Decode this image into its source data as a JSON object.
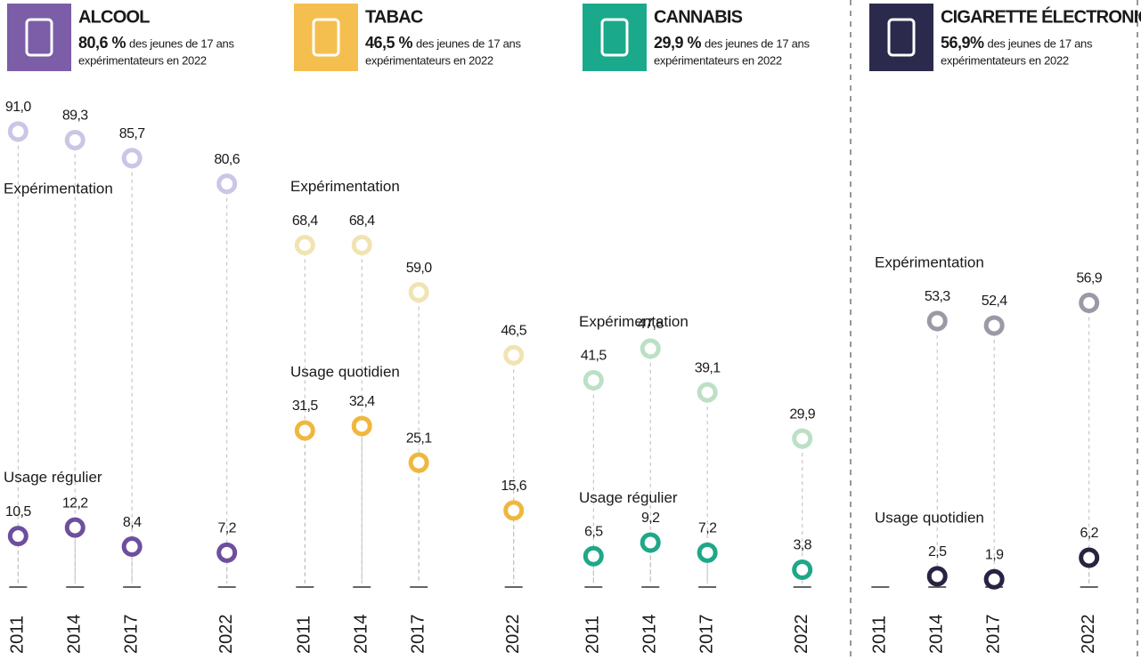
{
  "chart_data": [
    {
      "type": "line",
      "title": "ALCOOL",
      "headline": "80,6 %",
      "subtitle": [
        "des jeunes de 17 ans",
        "expérimentateurs en 2022"
      ],
      "icon_color": "#7b5ea7",
      "x": [
        2011,
        2014,
        2017,
        2022
      ],
      "xlim": [
        2010,
        2023
      ],
      "ylim": [
        0,
        100
      ],
      "series": [
        {
          "name": "Expérimentation",
          "color": "#cbc5e6",
          "values": [
            91.0,
            89.3,
            85.7,
            80.6
          ],
          "value_labels": [
            "91,0",
            "89,3",
            "85,7",
            "80,6"
          ]
        },
        {
          "name": "Usage régulier",
          "color": "#6e4f9e",
          "values": [
            10.5,
            12.2,
            8.4,
            7.2
          ],
          "value_labels": [
            "10,5",
            "12,2",
            "8,4",
            "7,2"
          ]
        }
      ]
    },
    {
      "type": "line",
      "title": "TABAC",
      "headline": "46,5 %",
      "subtitle": [
        "des jeunes de 17 ans",
        "expérimentateurs en 2022"
      ],
      "icon_color": "#f5bf4f",
      "x": [
        2011,
        2014,
        2017,
        2022
      ],
      "xlim": [
        2010,
        2023
      ],
      "ylim": [
        0,
        100
      ],
      "series": [
        {
          "name": "Expérimentation",
          "color": "#f1e3b2",
          "values": [
            68.4,
            68.4,
            59.0,
            46.5
          ],
          "value_labels": [
            "68,4",
            "68,4",
            "59,0",
            "46,5"
          ]
        },
        {
          "name": "Usage quotidien",
          "color": "#f0b73e",
          "values": [
            31.5,
            32.4,
            25.1,
            15.6
          ],
          "value_labels": [
            "31,5",
            "32,4",
            "25,1",
            "15,6"
          ]
        }
      ]
    },
    {
      "type": "line",
      "title": "CANNABIS",
      "headline": "29,9 %",
      "subtitle": [
        "des jeunes de 17 ans",
        "expérimentateurs en 2022"
      ],
      "icon_color": "#1aa98a",
      "x": [
        2011,
        2014,
        2017,
        2022
      ],
      "xlim": [
        2010,
        2023
      ],
      "ylim": [
        0,
        100
      ],
      "series": [
        {
          "name": "Expérimentation",
          "color": "#bce0c5",
          "values": [
            41.5,
            47.8,
            39.1,
            29.9
          ],
          "value_labels": [
            "41,5",
            "47,8",
            "39,1",
            "29,9"
          ]
        },
        {
          "name": "Usage régulier",
          "color": "#1ea888",
          "values": [
            6.5,
            9.2,
            7.2,
            3.8
          ],
          "value_labels": [
            "6,5",
            "9,2",
            "7,2",
            "3,8"
          ]
        }
      ]
    },
    {
      "type": "line",
      "title": "CIGARETTE ÉLECTRONIQUE",
      "headline": "56,9%",
      "subtitle": [
        "des jeunes de 17 ans",
        "expérimentateurs en 2022"
      ],
      "icon_color": "#2b2a4c",
      "x": [
        2011,
        2014,
        2017,
        2022
      ],
      "xlim": [
        2010,
        2023
      ],
      "ylim": [
        0,
        100
      ],
      "series": [
        {
          "name": "Expérimentation",
          "color": "#9a99a6",
          "values": [
            null,
            53.3,
            52.4,
            56.9
          ],
          "value_labels": [
            null,
            "53,3",
            "52,4",
            "56,9"
          ]
        },
        {
          "name": "Usage quotidien",
          "color": "#262442",
          "values": [
            null,
            2.5,
            1.9,
            6.2
          ],
          "value_labels": [
            null,
            "2,5",
            "1,9",
            "6,2"
          ]
        }
      ]
    }
  ]
}
